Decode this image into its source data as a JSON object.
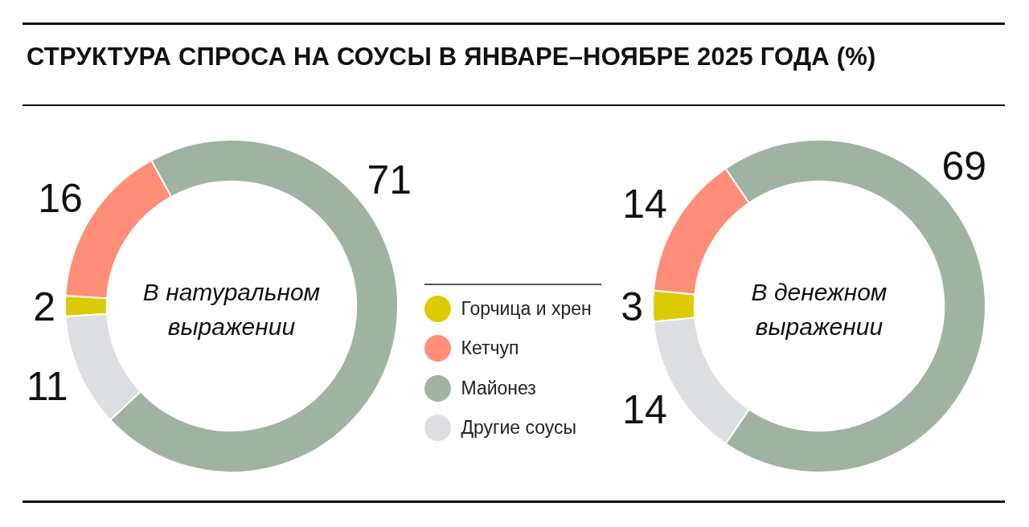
{
  "chart_data": {
    "type": "donut",
    "title": "СТРУКТУРА СПРОСА НА СОУСЫ В ЯНВАРЕ–НОЯБРЕ 2025 ГОДА (%)",
    "categories": [
      "Горчица и хрен",
      "Кетчуп",
      "Майонез",
      "Другие соусы"
    ],
    "colors": [
      "#dccb00",
      "#ff8d78",
      "#9fb3a2",
      "#dddee1"
    ],
    "series": [
      {
        "name": "В натуральном выражении",
        "values": [
          2,
          16,
          71,
          11
        ]
      },
      {
        "name": "В денежном выражении",
        "values": [
          3,
          14,
          69,
          14
        ]
      }
    ],
    "data_labels": true,
    "legend": "center"
  }
}
